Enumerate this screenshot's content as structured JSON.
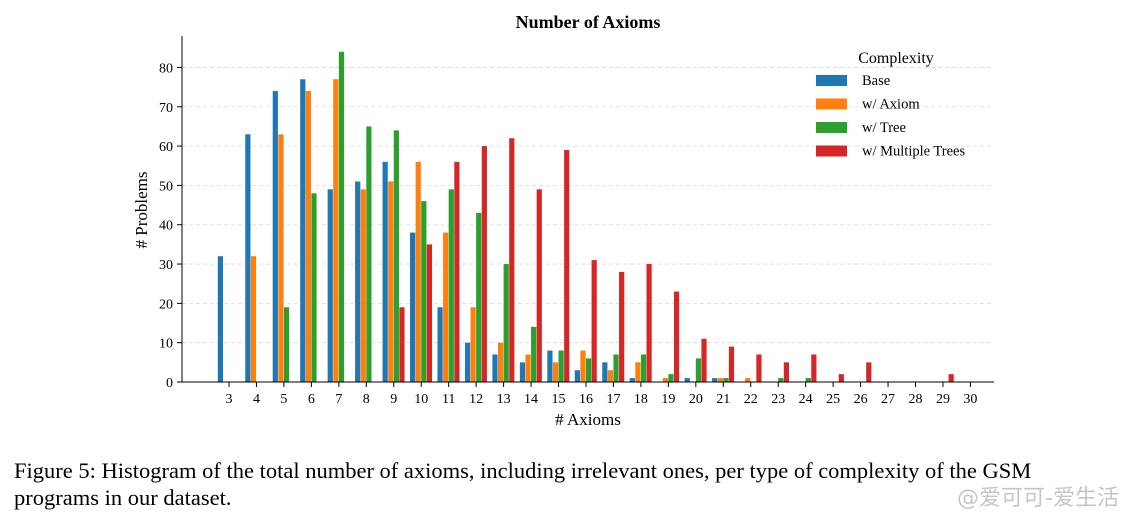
{
  "chart_data": {
    "type": "bar",
    "title": "Number of Axioms",
    "xlabel": "# Axioms",
    "ylabel": "# Problems",
    "ylim": [
      0,
      88
    ],
    "yticks": [
      0,
      10,
      20,
      30,
      40,
      50,
      60,
      70,
      80
    ],
    "grid": "horizontal-dashed",
    "legend_title": "Complexity",
    "legend_position": "top-right",
    "categories": [
      "3",
      "4",
      "5",
      "6",
      "7",
      "8",
      "9",
      "10",
      "11",
      "12",
      "13",
      "14",
      "15",
      "16",
      "17",
      "18",
      "19",
      "20",
      "21",
      "22",
      "23",
      "24",
      "25",
      "26",
      "27",
      "28",
      "29",
      "30"
    ],
    "series": [
      {
        "name": "Base",
        "color": "#1f77b4",
        "values": [
          32,
          63,
          74,
          77,
          49,
          51,
          56,
          38,
          19,
          10,
          7,
          5,
          8,
          3,
          5,
          1,
          0,
          1,
          1,
          0,
          0,
          0,
          0,
          0,
          0,
          0,
          0,
          0
        ]
      },
      {
        "name": "w/ Axiom",
        "color": "#ff7f0e",
        "values": [
          0,
          32,
          63,
          74,
          77,
          49,
          51,
          56,
          38,
          19,
          10,
          7,
          5,
          8,
          3,
          5,
          1,
          0,
          1,
          1,
          0,
          0,
          0,
          0,
          0,
          0,
          0,
          0
        ]
      },
      {
        "name": "w/ Tree",
        "color": "#2ca02c",
        "values": [
          0,
          0,
          19,
          48,
          84,
          65,
          64,
          46,
          49,
          43,
          30,
          14,
          8,
          6,
          7,
          7,
          2,
          6,
          1,
          0,
          1,
          1,
          0,
          0,
          0,
          0,
          0,
          0
        ]
      },
      {
        "name": "w/ Multiple Trees",
        "color": "#d62728",
        "values": [
          0,
          0,
          0,
          0,
          0,
          0,
          19,
          35,
          56,
          60,
          62,
          49,
          59,
          31,
          28,
          30,
          23,
          11,
          9,
          7,
          5,
          7,
          2,
          5,
          0,
          0,
          2,
          0
        ]
      }
    ]
  },
  "caption": "Figure 5: Histogram of the total number of axioms, including irrelevant ones, per type of complexity of the GSM programs in our dataset.",
  "watermark": "@爱可可-爱生活"
}
